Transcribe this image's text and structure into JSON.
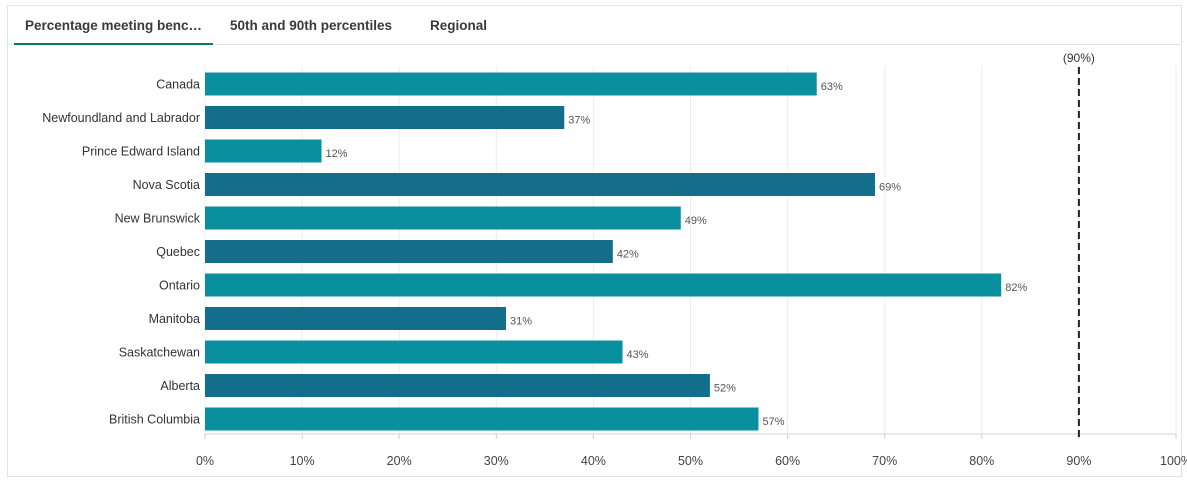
{
  "tabs": [
    {
      "label": "Percentage meeting benc…",
      "active": true
    },
    {
      "label": "50th and 90th percentiles",
      "active": false
    },
    {
      "label": "Regional",
      "active": false
    }
  ],
  "colors": {
    "bar_light": "#0a8f9e",
    "bar_dark": "#126e8a",
    "tab_underline": "#0a7d4a",
    "gridline": "#ececec",
    "reference_line": "#222222"
  },
  "chart_data": {
    "type": "bar",
    "orientation": "horizontal",
    "categories": [
      "Canada",
      "Newfoundland and Labrador",
      "Prince Edward Island",
      "Nova Scotia",
      "New Brunswick",
      "Quebec",
      "Ontario",
      "Manitoba",
      "Saskatchewan",
      "Alberta",
      "British Columbia"
    ],
    "values": [
      63,
      37,
      12,
      69,
      49,
      42,
      82,
      31,
      43,
      52,
      57
    ],
    "data_labels": [
      "63%",
      "37%",
      "12%",
      "69%",
      "49%",
      "42%",
      "82%",
      "31%",
      "43%",
      "52%",
      "57%"
    ],
    "xlim": [
      0,
      100
    ],
    "x_ticks": [
      0,
      10,
      20,
      30,
      40,
      50,
      60,
      70,
      80,
      90,
      100
    ],
    "x_tick_labels": [
      "0%",
      "10%",
      "20%",
      "30%",
      "40%",
      "50%",
      "60%",
      "70%",
      "80%",
      "90%",
      "100%"
    ],
    "reference_line": {
      "value": 90,
      "label": "(90%)",
      "style": "dashed"
    },
    "grid": true,
    "legend": false
  }
}
